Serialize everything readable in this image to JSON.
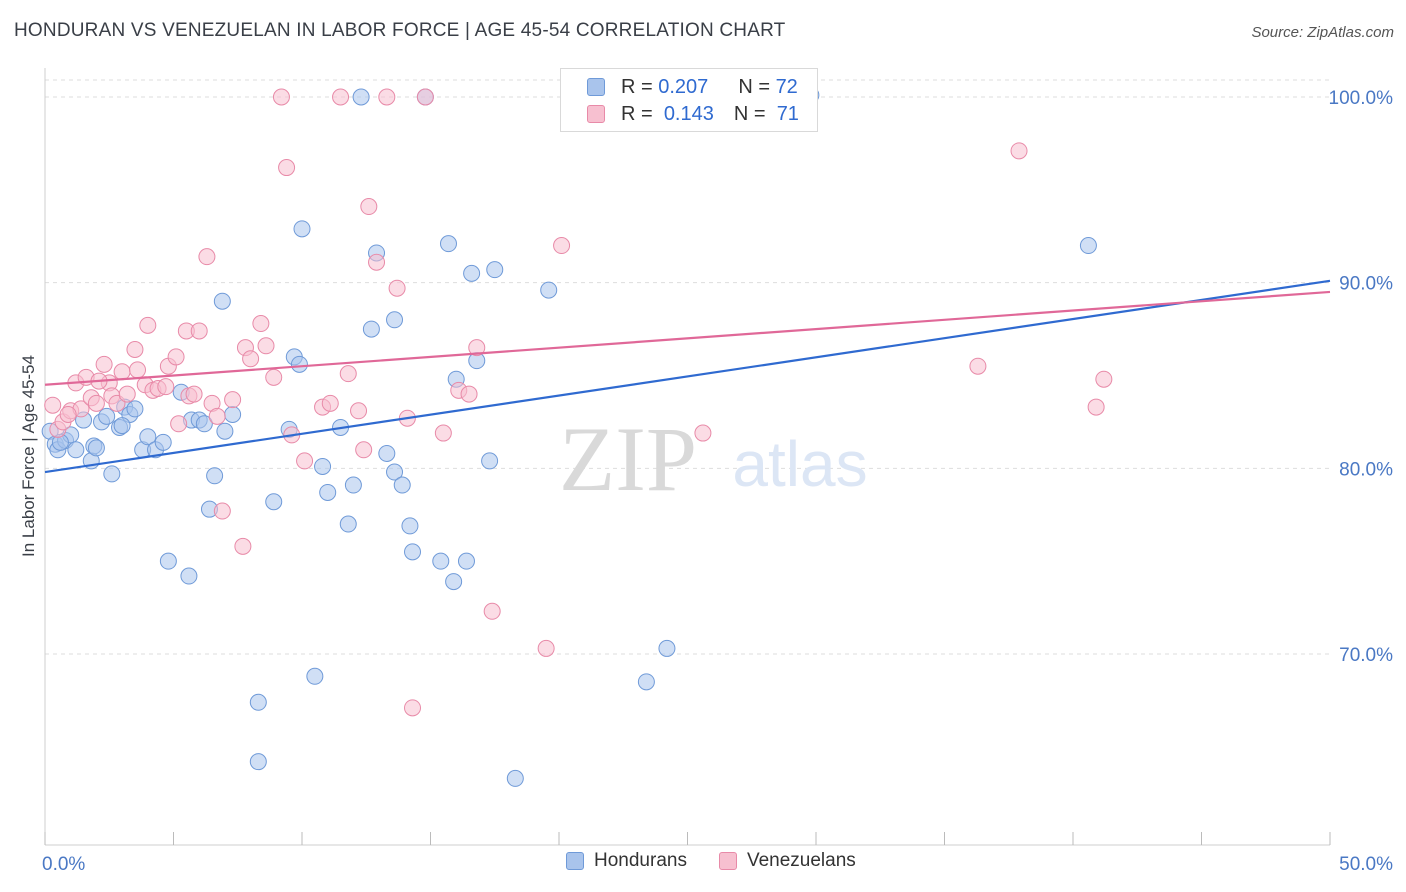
{
  "header": {
    "title": "HONDURAN VS VENEZUELAN IN LABOR FORCE | AGE 45-54 CORRELATION CHART",
    "source": "Source: ZipAtlas.com"
  },
  "watermark": {
    "zip": "ZIP",
    "atlas": "atlas"
  },
  "legend": {
    "rows": [
      {
        "r_label": "R =",
        "r_value": "0.207",
        "n_label": "N =",
        "n_value": "72",
        "color": "#a9c4ec",
        "stroke": "#6f9ad8"
      },
      {
        "r_label": "R =",
        "r_value": "0.143",
        "n_label": "N =",
        "n_value": "71",
        "color": "#f7c0d0",
        "stroke": "#e88aa8"
      }
    ]
  },
  "chart_data": {
    "type": "scatter",
    "title": "HONDURAN VS VENEZUELAN IN LABOR FORCE | AGE 45-54 CORRELATION CHART",
    "xlabel": "",
    "ylabel": "In Labor Force | Age 45-54",
    "xlim": [
      0,
      50
    ],
    "ylim": [
      61.5,
      102
    ],
    "x_tick_labels": [
      "0.0%",
      "50.0%"
    ],
    "y_ticks": [
      70,
      80,
      90,
      100
    ],
    "y_tick_labels": [
      "70.0%",
      "80.0%",
      "90.0%",
      "100.0%"
    ],
    "grid": true,
    "series": [
      {
        "name": "Hondurans",
        "color": "#a9c4ec",
        "stroke": "#6f9ad8",
        "line_color": "#2f6ad0",
        "trend": {
          "x": [
            0,
            50
          ],
          "y": [
            79.8,
            90.1
          ]
        },
        "points": [
          [
            0.2,
            82.0
          ],
          [
            0.4,
            81.3
          ],
          [
            0.5,
            81.0
          ],
          [
            0.8,
            81.5
          ],
          [
            1.0,
            81.8
          ],
          [
            1.2,
            81.0
          ],
          [
            1.5,
            82.6
          ],
          [
            1.8,
            80.4
          ],
          [
            1.9,
            81.2
          ],
          [
            2.0,
            81.1
          ],
          [
            2.2,
            82.5
          ],
          [
            2.4,
            82.8
          ],
          [
            2.6,
            79.7
          ],
          [
            2.9,
            82.2
          ],
          [
            3.1,
            83.3
          ],
          [
            3.3,
            82.9
          ],
          [
            3.5,
            83.2
          ],
          [
            3.8,
            81.0
          ],
          [
            4.0,
            81.7
          ],
          [
            4.3,
            81.0
          ],
          [
            4.6,
            81.4
          ],
          [
            4.8,
            75.0
          ],
          [
            5.3,
            84.1
          ],
          [
            5.6,
            74.2
          ],
          [
            5.7,
            82.6
          ],
          [
            6.0,
            82.6
          ],
          [
            6.4,
            77.8
          ],
          [
            6.6,
            79.6
          ],
          [
            6.9,
            89.0
          ],
          [
            7.0,
            82.0
          ],
          [
            7.3,
            82.9
          ],
          [
            8.3,
            67.4
          ],
          [
            8.3,
            64.2
          ],
          [
            8.9,
            78.2
          ],
          [
            9.5,
            82.1
          ],
          [
            9.7,
            86.0
          ],
          [
            9.9,
            85.6
          ],
          [
            10.0,
            92.9
          ],
          [
            10.5,
            68.8
          ],
          [
            10.8,
            80.1
          ],
          [
            11.0,
            78.7
          ],
          [
            11.5,
            82.2
          ],
          [
            11.8,
            77.0
          ],
          [
            12.0,
            79.1
          ],
          [
            12.3,
            100.0
          ],
          [
            12.7,
            87.5
          ],
          [
            12.9,
            91.6
          ],
          [
            13.3,
            80.8
          ],
          [
            13.6,
            88.0
          ],
          [
            13.6,
            79.8
          ],
          [
            13.9,
            79.1
          ],
          [
            14.2,
            76.9
          ],
          [
            14.3,
            75.5
          ],
          [
            14.8,
            100.0
          ],
          [
            15.4,
            75.0
          ],
          [
            15.7,
            92.1
          ],
          [
            15.9,
            73.9
          ],
          [
            16.0,
            84.8
          ],
          [
            16.4,
            75.0
          ],
          [
            16.6,
            90.5
          ],
          [
            16.8,
            85.8
          ],
          [
            17.3,
            80.4
          ],
          [
            17.5,
            90.7
          ],
          [
            18.3,
            63.3
          ],
          [
            19.6,
            89.6
          ],
          [
            23.4,
            68.5
          ],
          [
            24.2,
            70.3
          ],
          [
            29.8,
            100.1
          ],
          [
            40.6,
            92.0
          ],
          [
            0.6,
            81.4
          ],
          [
            3.0,
            82.3
          ],
          [
            6.2,
            82.4
          ]
        ]
      },
      {
        "name": "Venezuelans",
        "color": "#f7c0d0",
        "stroke": "#e88aa8",
        "line_color": "#e06898",
        "trend": {
          "x": [
            0,
            50
          ],
          "y": [
            84.5,
            89.5
          ]
        },
        "points": [
          [
            0.3,
            83.4
          ],
          [
            0.5,
            82.1
          ],
          [
            0.7,
            82.5
          ],
          [
            1.0,
            83.1
          ],
          [
            1.2,
            84.6
          ],
          [
            1.4,
            83.2
          ],
          [
            1.6,
            84.9
          ],
          [
            1.8,
            83.8
          ],
          [
            2.0,
            83.5
          ],
          [
            2.3,
            85.6
          ],
          [
            2.5,
            84.6
          ],
          [
            2.6,
            83.9
          ],
          [
            2.8,
            83.5
          ],
          [
            3.0,
            85.2
          ],
          [
            3.2,
            84.0
          ],
          [
            3.5,
            86.4
          ],
          [
            3.6,
            85.3
          ],
          [
            3.9,
            84.5
          ],
          [
            4.0,
            87.7
          ],
          [
            4.2,
            84.2
          ],
          [
            4.4,
            84.3
          ],
          [
            4.7,
            84.4
          ],
          [
            4.8,
            85.5
          ],
          [
            5.1,
            86.0
          ],
          [
            5.2,
            82.4
          ],
          [
            5.5,
            87.4
          ],
          [
            5.6,
            83.9
          ],
          [
            6.0,
            87.4
          ],
          [
            6.3,
            91.4
          ],
          [
            6.5,
            83.5
          ],
          [
            6.7,
            82.8
          ],
          [
            6.9,
            77.7
          ],
          [
            7.3,
            83.7
          ],
          [
            7.7,
            75.8
          ],
          [
            7.8,
            86.5
          ],
          [
            8.0,
            85.9
          ],
          [
            8.4,
            87.8
          ],
          [
            8.6,
            86.6
          ],
          [
            8.9,
            84.9
          ],
          [
            9.2,
            100.0
          ],
          [
            9.4,
            96.2
          ],
          [
            9.6,
            81.8
          ],
          [
            10.1,
            80.4
          ],
          [
            10.8,
            83.3
          ],
          [
            11.1,
            83.5
          ],
          [
            11.5,
            100.0
          ],
          [
            11.8,
            85.1
          ],
          [
            12.2,
            83.1
          ],
          [
            12.4,
            81.0
          ],
          [
            12.6,
            94.1
          ],
          [
            12.9,
            91.1
          ],
          [
            13.3,
            100.0
          ],
          [
            13.7,
            89.7
          ],
          [
            14.1,
            82.7
          ],
          [
            14.3,
            67.1
          ],
          [
            14.8,
            100.0
          ],
          [
            15.5,
            81.9
          ],
          [
            16.1,
            84.2
          ],
          [
            16.5,
            84.0
          ],
          [
            16.8,
            86.5
          ],
          [
            17.4,
            72.3
          ],
          [
            19.5,
            70.3
          ],
          [
            20.1,
            92.0
          ],
          [
            25.6,
            81.9
          ],
          [
            36.3,
            85.5
          ],
          [
            37.9,
            97.1
          ],
          [
            40.9,
            83.3
          ],
          [
            41.2,
            84.8
          ],
          [
            0.9,
            82.9
          ],
          [
            2.1,
            84.7
          ],
          [
            5.8,
            84.0
          ]
        ]
      }
    ]
  },
  "bottom_legend": [
    {
      "label": "Hondurans",
      "color": "#a9c4ec",
      "stroke": "#6f9ad8"
    },
    {
      "label": "Venezuelans",
      "color": "#f7c0d0",
      "stroke": "#e88aa8"
    }
  ]
}
